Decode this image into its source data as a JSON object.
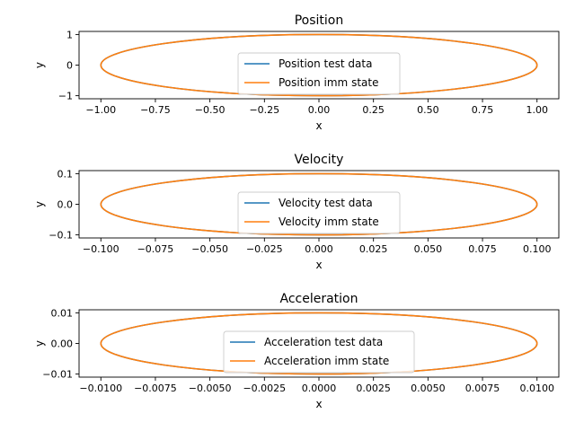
{
  "chart_data": [
    {
      "type": "line",
      "title": "Position",
      "xlabel": "x",
      "ylabel": "y",
      "xlim": [
        -1.1,
        1.1
      ],
      "ylim": [
        -1.1,
        1.1
      ],
      "x_ticks": [
        -1.0,
        -0.75,
        -0.5,
        -0.25,
        0.0,
        0.25,
        0.5,
        0.75,
        1.0
      ],
      "x_tick_labels": [
        "−1.00",
        "−0.75",
        "−0.50",
        "−0.25",
        "0.00",
        "0.25",
        "0.50",
        "0.75",
        "1.00"
      ],
      "y_ticks": [
        -1,
        0,
        1
      ],
      "y_tick_labels": [
        "−1",
        "0",
        "1"
      ],
      "legend_position": "center",
      "grid": false,
      "series": [
        {
          "name": "Position test data",
          "color": "#1f77b4",
          "shape": "ellipse",
          "rx": 1.0,
          "ry": 1.0
        },
        {
          "name": "Position imm state",
          "color": "#ff7f0e",
          "shape": "ellipse",
          "rx": 1.0,
          "ry": 1.0
        }
      ]
    },
    {
      "type": "line",
      "title": "Velocity",
      "xlabel": "x",
      "ylabel": "y",
      "xlim": [
        -0.11,
        0.11
      ],
      "ylim": [
        -0.11,
        0.11
      ],
      "x_ticks": [
        -0.1,
        -0.075,
        -0.05,
        -0.025,
        0.0,
        0.025,
        0.05,
        0.075,
        0.1
      ],
      "x_tick_labels": [
        "−0.100",
        "−0.075",
        "−0.050",
        "−0.025",
        "0.000",
        "0.025",
        "0.050",
        "0.075",
        "0.100"
      ],
      "y_ticks": [
        -0.1,
        0.0,
        0.1
      ],
      "y_tick_labels": [
        "−0.1",
        "0.0",
        "0.1"
      ],
      "legend_position": "center",
      "grid": false,
      "series": [
        {
          "name": "Velocity test data",
          "color": "#1f77b4",
          "shape": "ellipse",
          "rx": 0.1,
          "ry": 0.1
        },
        {
          "name": "Velocity imm state",
          "color": "#ff7f0e",
          "shape": "ellipse",
          "rx": 0.1,
          "ry": 0.1
        }
      ]
    },
    {
      "type": "line",
      "title": "Acceleration",
      "xlabel": "x",
      "ylabel": "y",
      "xlim": [
        -0.011,
        0.011
      ],
      "ylim": [
        -0.011,
        0.011
      ],
      "x_ticks": [
        -0.01,
        -0.0075,
        -0.005,
        -0.0025,
        0.0,
        0.0025,
        0.005,
        0.0075,
        0.01
      ],
      "x_tick_labels": [
        "−0.0100",
        "−0.0075",
        "−0.0050",
        "−0.0025",
        "0.0000",
        "0.0025",
        "0.0050",
        "0.0075",
        "0.0100"
      ],
      "y_ticks": [
        -0.01,
        0.0,
        0.01
      ],
      "y_tick_labels": [
        "−0.01",
        "0.00",
        "0.01"
      ],
      "legend_position": "center",
      "grid": false,
      "series": [
        {
          "name": "Acceleration test data",
          "color": "#1f77b4",
          "shape": "ellipse",
          "rx": 0.01,
          "ry": 0.01
        },
        {
          "name": "Acceleration imm state",
          "color": "#ff7f0e",
          "shape": "ellipse",
          "rx": 0.01,
          "ry": 0.01
        }
      ]
    }
  ]
}
